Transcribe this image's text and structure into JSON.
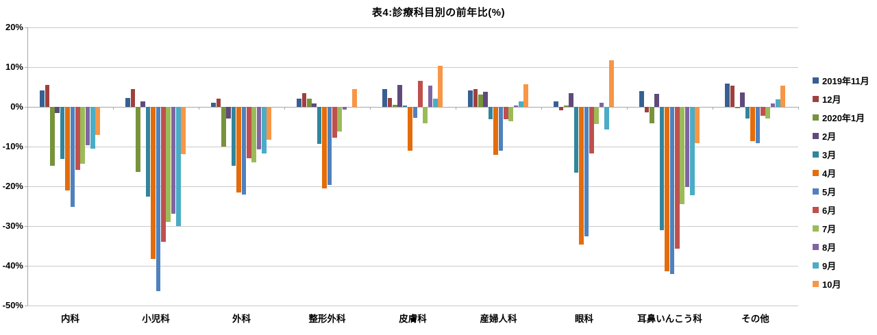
{
  "title": "表4:診療科目別の前年比(%)",
  "chart_data": {
    "type": "bar",
    "title": "表4:診療科目別の前年比(%)",
    "xlabel": "",
    "ylabel": "",
    "unit": "%",
    "grid": true,
    "legend_position": "right",
    "y_axis": {
      "max": 20,
      "min": -50,
      "step": 10,
      "tick_labels": [
        "20%",
        "10%",
        "0%",
        "-10%",
        "-20%",
        "-30%",
        "-40%",
        "-50%"
      ]
    },
    "categories": [
      "内科",
      "小児科",
      "外科",
      "整形外科",
      "皮膚科",
      "産婦人科",
      "眼科",
      "耳鼻いんこう科",
      "その他"
    ],
    "series": [
      {
        "name": "2019年11月",
        "color": "#376092",
        "values": [
          4.1,
          2.3,
          1.1,
          2.1,
          4.4,
          4.2,
          1.3,
          4.0,
          5.9
        ]
      },
      {
        "name": "12月",
        "color": "#9E413E",
        "values": [
          5.5,
          4.4,
          2.0,
          3.4,
          2.3,
          4.5,
          -0.8,
          -1.3,
          5.4
        ]
      },
      {
        "name": "2020年1月",
        "color": "#77933C",
        "values": [
          -14.9,
          -16.4,
          -10.0,
          2.0,
          0.6,
          3.1,
          0.3,
          -4.2,
          -0.4
        ]
      },
      {
        "name": "2月",
        "color": "#604A7B",
        "values": [
          -1.6,
          1.3,
          -3.0,
          0.8,
          5.5,
          3.8,
          3.4,
          3.3,
          3.6
        ]
      },
      {
        "name": "3月",
        "color": "#31859C",
        "values": [
          -13.1,
          -22.6,
          -14.8,
          -9.3,
          0.3,
          -3.1,
          -16.5,
          -31.0,
          -3.0
        ]
      },
      {
        "name": "4月",
        "color": "#E46C0A",
        "values": [
          -21.0,
          -38.3,
          -21.5,
          -20.5,
          -11.0,
          -12.1,
          -34.7,
          -41.3,
          -8.6
        ]
      },
      {
        "name": "5月",
        "color": "#4F81BD",
        "values": [
          -25.1,
          -46.3,
          -22.1,
          -19.6,
          -2.7,
          -11.0,
          -32.6,
          -42.1,
          -9.1
        ]
      },
      {
        "name": "6月",
        "color": "#C0504D",
        "values": [
          -15.9,
          -33.9,
          -13.0,
          -7.7,
          6.6,
          -3.1,
          -11.7,
          -35.7,
          -2.3
        ]
      },
      {
        "name": "7月",
        "color": "#9BBB59",
        "values": [
          -14.3,
          -28.9,
          -13.9,
          -6.2,
          -4.2,
          -3.6,
          -4.3,
          -24.5,
          -3.0
        ]
      },
      {
        "name": "8月",
        "color": "#8064A2",
        "values": [
          -9.7,
          -26.9,
          -10.7,
          -0.7,
          5.3,
          0.4,
          1.0,
          -20.2,
          0.9
        ]
      },
      {
        "name": "9月",
        "color": "#4BACC6",
        "values": [
          -10.6,
          -30.0,
          -11.7,
          0.0,
          2.1,
          1.3,
          -5.7,
          -22.2,
          1.9
        ]
      },
      {
        "name": "10月",
        "color": "#F79646",
        "values": [
          -7.0,
          -11.9,
          -8.2,
          4.5,
          10.4,
          5.7,
          11.8,
          -9.1,
          5.4
        ]
      }
    ],
    "colors": {
      "gridline": "#C9C9C9",
      "axis": "#A6A6A6",
      "background": "#FFFFFF",
      "text": "#000000"
    }
  }
}
